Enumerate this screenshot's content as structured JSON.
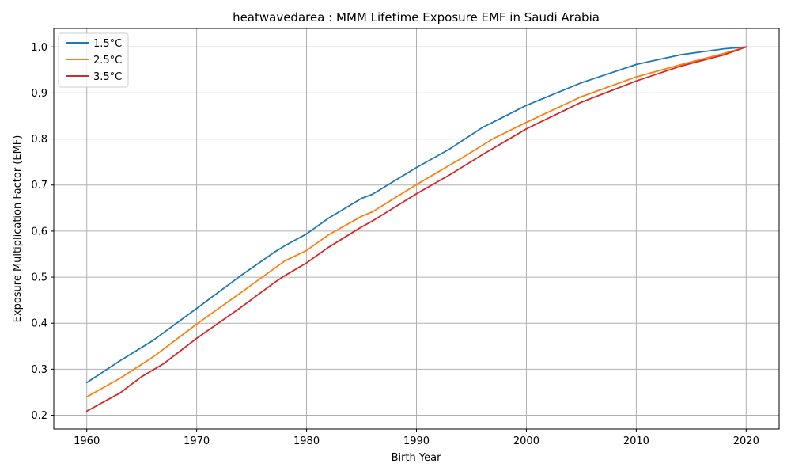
{
  "chart_data": {
    "type": "line",
    "title": "heatwavedarea : MMM Lifetime Exposure EMF in Saudi Arabia",
    "xlabel": "Birth Year",
    "ylabel": "Exposure Multiplication Factor (EMF)",
    "xlim": [
      1957,
      2023
    ],
    "ylim": [
      0.17,
      1.04
    ],
    "xticks": [
      1960,
      1970,
      1980,
      1990,
      2000,
      2010,
      2020
    ],
    "yticks": [
      0.2,
      0.3,
      0.4,
      0.5,
      0.6,
      0.7,
      0.8,
      0.9,
      1.0
    ],
    "xtick_labels": [
      "1960",
      "1970",
      "1980",
      "1990",
      "2000",
      "2010",
      "2020"
    ],
    "ytick_labels": [
      "0.2",
      "0.3",
      "0.4",
      "0.5",
      "0.6",
      "0.7",
      "0.8",
      "0.9",
      "1.0"
    ],
    "grid": true,
    "legend_position": "top-left",
    "series": [
      {
        "name": "1.5°C",
        "color": "#1f77b4",
        "x": [
          1960,
          1963,
          1966,
          1970,
          1974,
          1977,
          1978,
          1980,
          1982,
          1985,
          1986,
          1990,
          1993,
          1996,
          1997,
          2000,
          2005,
          2010,
          2014,
          2018,
          2020
        ],
        "y": [
          0.271,
          0.318,
          0.362,
          0.432,
          0.503,
          0.553,
          0.568,
          0.594,
          0.628,
          0.671,
          0.68,
          0.738,
          0.778,
          0.825,
          0.837,
          0.873,
          0.922,
          0.962,
          0.983,
          0.996,
          1.0
        ]
      },
      {
        "name": "2.5°C",
        "color": "#ff7f0e",
        "x": [
          1960,
          1963,
          1966,
          1970,
          1974,
          1978,
          1980,
          1982,
          1985,
          1986,
          1990,
          1994,
          1997,
          2000,
          2005,
          2010,
          2014,
          2018,
          2020
        ],
        "y": [
          0.24,
          0.28,
          0.326,
          0.398,
          0.466,
          0.535,
          0.558,
          0.592,
          0.632,
          0.642,
          0.701,
          0.757,
          0.801,
          0.836,
          0.892,
          0.935,
          0.961,
          0.986,
          1.0
        ]
      },
      {
        "name": "3.5°C",
        "color": "#d62728",
        "x": [
          1960,
          1963,
          1965,
          1967,
          1970,
          1974,
          1977,
          1978,
          1980,
          1982,
          1985,
          1986,
          1990,
          1993,
          1996,
          2000,
          2005,
          2010,
          2014,
          2018,
          2020
        ],
        "y": [
          0.209,
          0.248,
          0.284,
          0.312,
          0.367,
          0.434,
          0.487,
          0.503,
          0.531,
          0.565,
          0.609,
          0.622,
          0.681,
          0.722,
          0.766,
          0.822,
          0.88,
          0.926,
          0.958,
          0.983,
          1.0
        ]
      }
    ]
  }
}
